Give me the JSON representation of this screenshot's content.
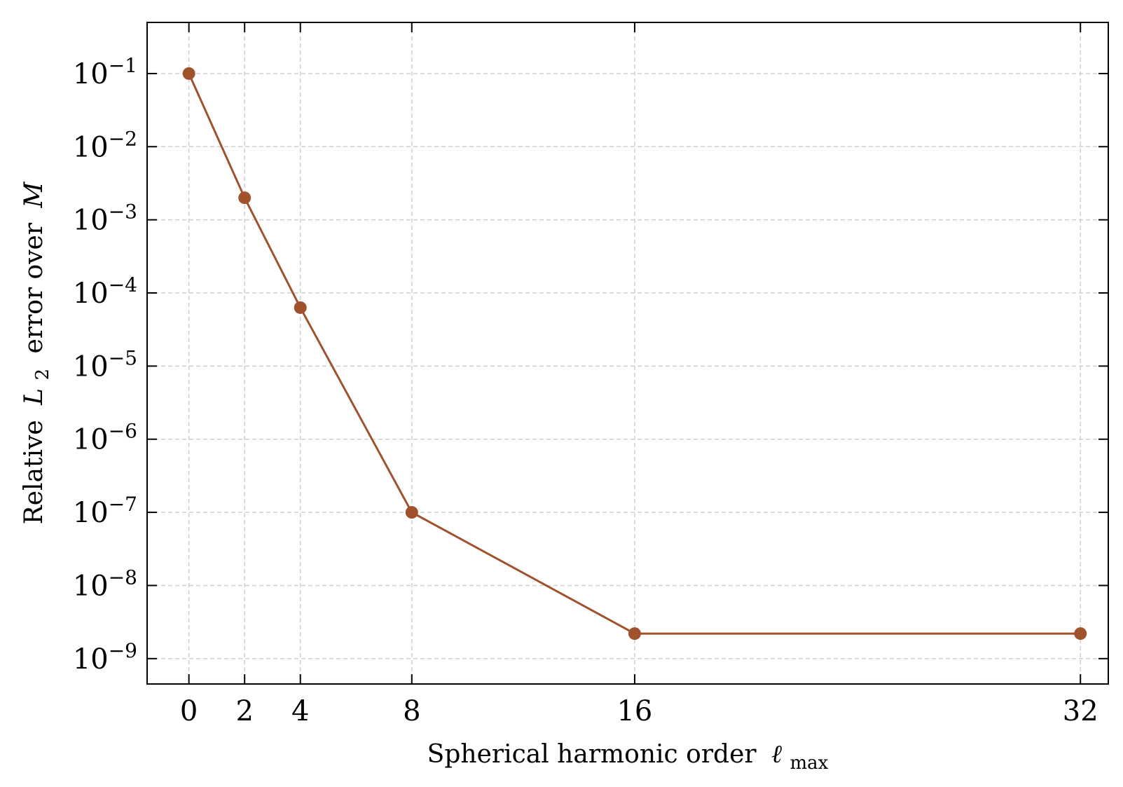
{
  "chart_data": {
    "type": "line",
    "title": "",
    "xlabel": "Spherical harmonic order",
    "xlabel_symbol": "ℓ",
    "xlabel_subscript": "max",
    "ylabel": "Relative",
    "ylabel_symbol": "L",
    "ylabel_subscript": "2",
    "ylabel_tail": "error over",
    "ylabel_tail_symbol": "M",
    "x_ticks": [
      "0",
      "2",
      "4",
      "8",
      "16",
      "32"
    ],
    "y_scale": "log",
    "y_ticks": [
      {
        "base": "10",
        "exp": "−1",
        "value": 0.1
      },
      {
        "base": "10",
        "exp": "−2",
        "value": 0.01
      },
      {
        "base": "10",
        "exp": "−3",
        "value": 0.001
      },
      {
        "base": "10",
        "exp": "−4",
        "value": 0.0001
      },
      {
        "base": "10",
        "exp": "−5",
        "value": 1e-05
      },
      {
        "base": "10",
        "exp": "−6",
        "value": 1e-06
      },
      {
        "base": "10",
        "exp": "−7",
        "value": 1e-07
      },
      {
        "base": "10",
        "exp": "−8",
        "value": 1e-08
      },
      {
        "base": "10",
        "exp": "−9",
        "value": 1e-09
      }
    ],
    "xlim": [
      -1.5,
      33
    ],
    "ylim": [
      4.5e-10,
      0.5
    ],
    "grid": true,
    "series": [
      {
        "x": [
          0,
          2,
          4,
          8,
          16,
          32
        ],
        "y": [
          0.1,
          0.002,
          6.3e-05,
          1e-07,
          2.2e-09,
          2.2e-09
        ],
        "color": "#a0522d"
      }
    ]
  }
}
